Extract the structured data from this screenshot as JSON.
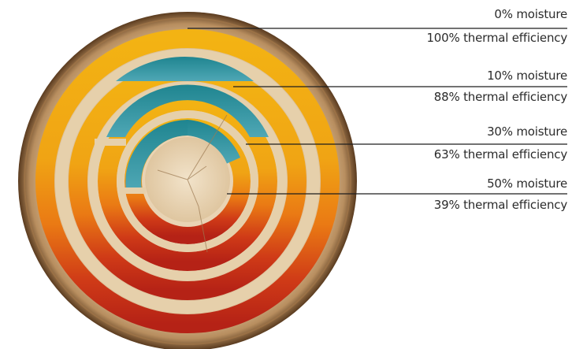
{
  "levels": [
    {
      "moisture": "0% moisture",
      "efficiency": "100% thermal efficiency",
      "efficiency_pct": 100
    },
    {
      "moisture": "10% moisture",
      "efficiency": "88% thermal efficiency",
      "efficiency_pct": 88
    },
    {
      "moisture": "30% moisture",
      "efficiency": "63% thermal efficiency",
      "efficiency_pct": 63
    },
    {
      "moisture": "50% moisture",
      "efficiency": "39% thermal efficiency",
      "efficiency_pct": 39
    }
  ],
  "colors": {
    "moisture": "#2a8f98",
    "moisture_light": "#4fa7b5",
    "warm_top": "#f3b313",
    "warm_mid": "#ea7a14",
    "warm_bottom": "#c52818",
    "wood": "#dcc19a",
    "bark": "#5a3b1f",
    "leader_line": "#1e1e1e",
    "text": "#2b2b2b"
  }
}
